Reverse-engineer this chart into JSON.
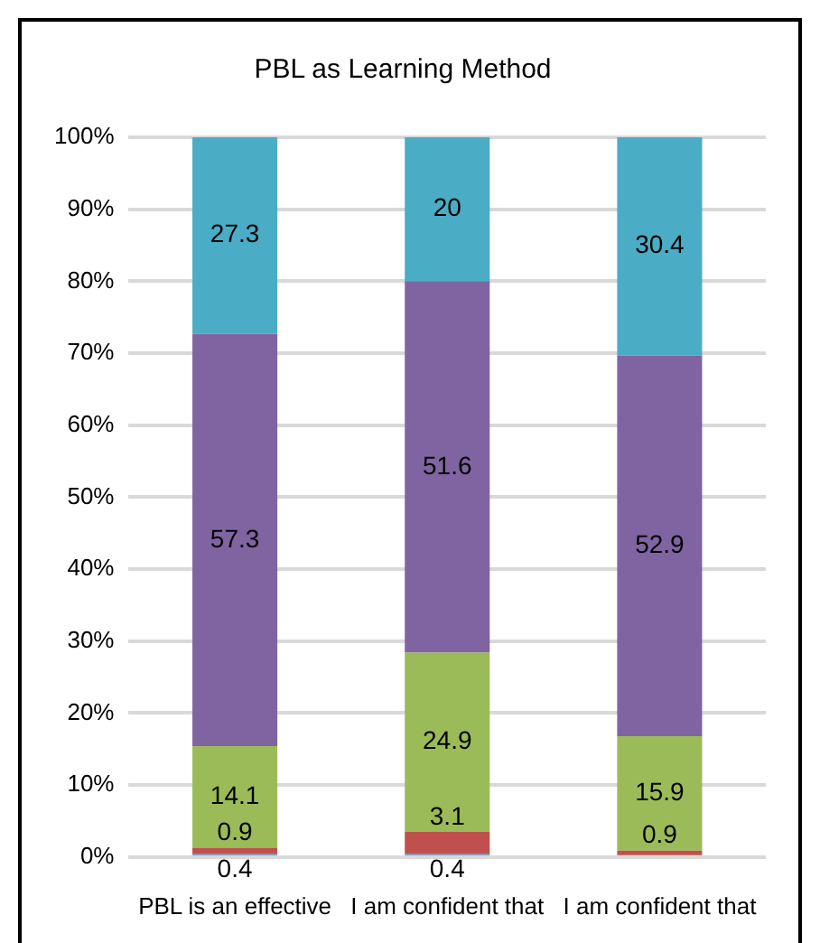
{
  "chart_data": {
    "type": "bar",
    "title": "PBL as Learning Method",
    "categories": [
      "PBL is an effective",
      "I am confident that",
      "I am confident that"
    ],
    "stacked": true,
    "data_labels": true,
    "grid": "y",
    "legend": false,
    "ylim": [
      0,
      100
    ],
    "yticks": [
      {
        "value": 0,
        "label": "0%"
      },
      {
        "value": 10,
        "label": "10%"
      },
      {
        "value": 20,
        "label": "20%"
      },
      {
        "value": 30,
        "label": "30%"
      },
      {
        "value": 40,
        "label": "40%"
      },
      {
        "value": 50,
        "label": "50%"
      },
      {
        "value": 60,
        "label": "60%"
      },
      {
        "value": 70,
        "label": "70%"
      },
      {
        "value": 80,
        "label": "80%"
      },
      {
        "value": 90,
        "label": "90%"
      },
      {
        "value": 100,
        "label": "100%"
      }
    ],
    "series": [
      {
        "color": "#4f81bd",
        "values": [
          0.4,
          0.4,
          null
        ]
      },
      {
        "color": "#c0504d",
        "values": [
          0.9,
          3.1,
          0.9
        ]
      },
      {
        "color": "#9bbb59",
        "values": [
          14.1,
          24.9,
          15.9
        ]
      },
      {
        "color": "#8064a2",
        "values": [
          57.3,
          51.6,
          52.9
        ]
      },
      {
        "color": "#4bacc6",
        "values": [
          27.3,
          20,
          30.4
        ]
      }
    ]
  }
}
